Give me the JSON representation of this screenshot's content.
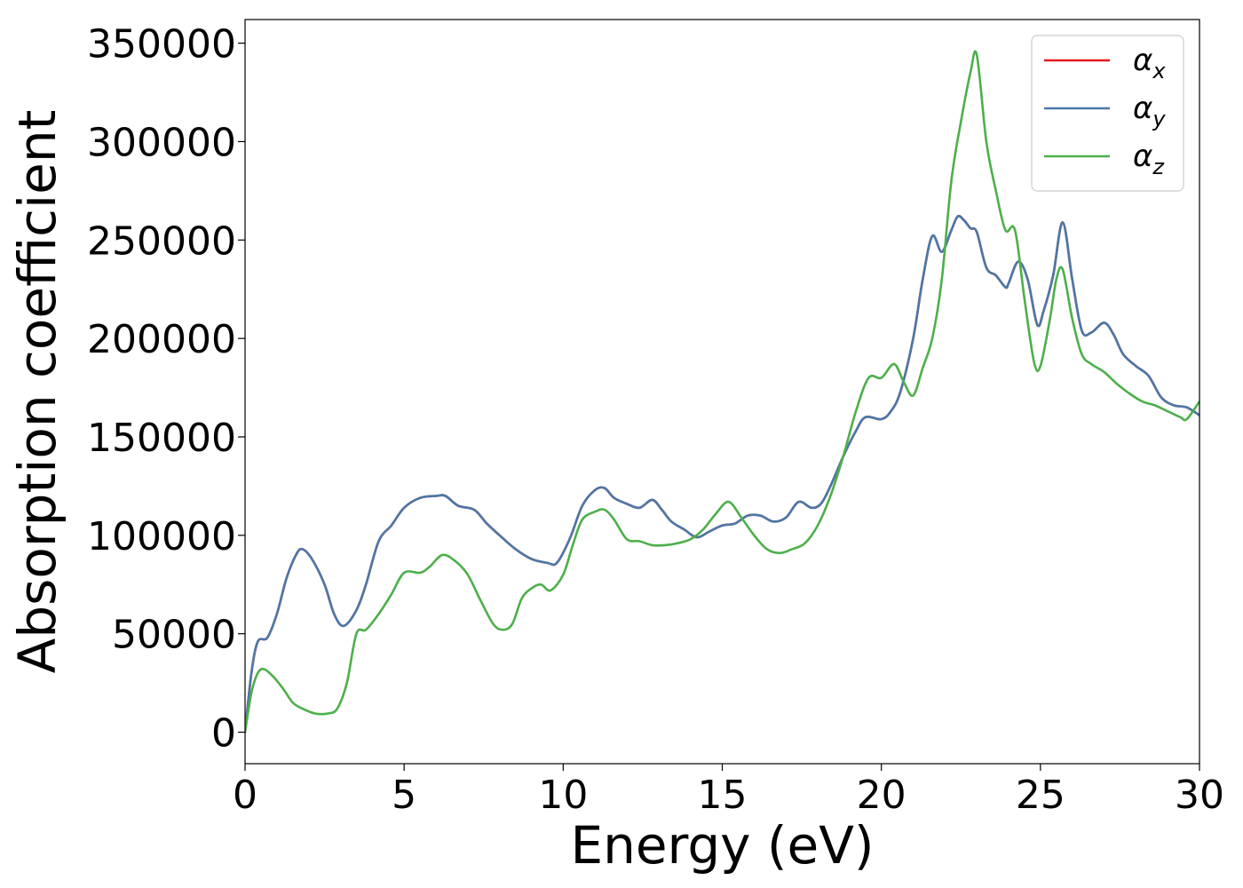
{
  "chart_data": {
    "type": "line",
    "title": "",
    "xlabel": "Energy (eV)",
    "ylabel": "Absorption coefficient",
    "xlim": [
      0,
      30
    ],
    "ylim": [
      -16000,
      362000
    ],
    "xticks": [
      0,
      5,
      10,
      15,
      20,
      25,
      30
    ],
    "xtick_labels": [
      "0",
      "5",
      "10",
      "15",
      "20",
      "25",
      "30"
    ],
    "yticks": [
      0,
      50000,
      100000,
      150000,
      200000,
      250000,
      300000,
      350000
    ],
    "ytick_labels": [
      "0",
      "50000",
      "100000",
      "150000",
      "200000",
      "250000",
      "300000",
      "350000"
    ],
    "grid": false,
    "legend_position": "top-right",
    "series": [
      {
        "name": "α",
        "subscript": "x",
        "color": "#e41a1c",
        "x": [
          0,
          0.2,
          0.4,
          0.7,
          1.0,
          1.3,
          1.6,
          1.8,
          2.1,
          2.5,
          2.8,
          3.1,
          3.5,
          3.8,
          4.2,
          4.6,
          5.0,
          5.5,
          6.0,
          6.3,
          6.7,
          7.2,
          7.6,
          8.0,
          8.5,
          9.0,
          9.5,
          9.8,
          10.2,
          10.6,
          11.0,
          11.3,
          11.6,
          12.0,
          12.4,
          12.8,
          13.1,
          13.4,
          13.8,
          14.2,
          14.6,
          15.0,
          15.4,
          15.8,
          16.2,
          16.6,
          17.0,
          17.4,
          17.8,
          18.1,
          18.4,
          18.8,
          19.2,
          19.5,
          20.0,
          20.3,
          20.6,
          21.0,
          21.3,
          21.6,
          21.9,
          22.2,
          22.4,
          22.6,
          22.8,
          23.0,
          23.3,
          23.6,
          23.9,
          24.0,
          24.3,
          24.6,
          24.9,
          25.1,
          25.4,
          25.7,
          26.0,
          26.3,
          26.6,
          27.0,
          27.3,
          27.6,
          28.0,
          28.4,
          28.8,
          29.2,
          29.6,
          30.0
        ],
        "y": [
          0,
          30000,
          46000,
          48000,
          60000,
          78000,
          90000,
          93000,
          88000,
          75000,
          60000,
          54000,
          62000,
          75000,
          97000,
          105000,
          114000,
          119000,
          120000,
          120000,
          115000,
          113000,
          106000,
          100000,
          93000,
          88000,
          86000,
          86000,
          98000,
          115000,
          123000,
          124000,
          119000,
          116000,
          114000,
          118000,
          113000,
          107000,
          103000,
          99000,
          102000,
          105000,
          106000,
          110000,
          110000,
          107000,
          109000,
          117000,
          114000,
          116000,
          125000,
          140000,
          153000,
          160000,
          159000,
          163000,
          173000,
          200000,
          230000,
          252000,
          244000,
          255000,
          262000,
          260000,
          256000,
          254000,
          236000,
          232000,
          226000,
          228000,
          239000,
          230000,
          207000,
          214000,
          232000,
          259000,
          230000,
          204000,
          203000,
          208000,
          202000,
          192000,
          186000,
          181000,
          170000,
          166000,
          165000,
          161000
        ]
      },
      {
        "name": "α",
        "subscript": "y",
        "color": "#4a78a8",
        "x": [
          0,
          0.2,
          0.4,
          0.7,
          1.0,
          1.3,
          1.6,
          1.8,
          2.1,
          2.5,
          2.8,
          3.1,
          3.5,
          3.8,
          4.2,
          4.6,
          5.0,
          5.5,
          6.0,
          6.3,
          6.7,
          7.2,
          7.6,
          8.0,
          8.5,
          9.0,
          9.5,
          9.8,
          10.2,
          10.6,
          11.0,
          11.3,
          11.6,
          12.0,
          12.4,
          12.8,
          13.1,
          13.4,
          13.8,
          14.2,
          14.6,
          15.0,
          15.4,
          15.8,
          16.2,
          16.6,
          17.0,
          17.4,
          17.8,
          18.1,
          18.4,
          18.8,
          19.2,
          19.5,
          20.0,
          20.3,
          20.6,
          21.0,
          21.3,
          21.6,
          21.9,
          22.2,
          22.4,
          22.6,
          22.8,
          23.0,
          23.3,
          23.6,
          23.9,
          24.0,
          24.3,
          24.6,
          24.9,
          25.1,
          25.4,
          25.7,
          26.0,
          26.3,
          26.6,
          27.0,
          27.3,
          27.6,
          28.0,
          28.4,
          28.8,
          29.2,
          29.6,
          30.0
        ],
        "y": [
          0,
          30000,
          46000,
          48000,
          60000,
          78000,
          90000,
          93000,
          88000,
          75000,
          60000,
          54000,
          62000,
          75000,
          97000,
          105000,
          114000,
          119000,
          120000,
          120000,
          115000,
          113000,
          106000,
          100000,
          93000,
          88000,
          86000,
          86000,
          98000,
          115000,
          123000,
          124000,
          119000,
          116000,
          114000,
          118000,
          113000,
          107000,
          103000,
          99000,
          102000,
          105000,
          106000,
          110000,
          110000,
          107000,
          109000,
          117000,
          114000,
          116000,
          125000,
          140000,
          153000,
          160000,
          159000,
          163000,
          173000,
          200000,
          230000,
          252000,
          244000,
          255000,
          262000,
          260000,
          256000,
          254000,
          236000,
          232000,
          226000,
          228000,
          239000,
          230000,
          207000,
          214000,
          232000,
          259000,
          230000,
          204000,
          203000,
          208000,
          202000,
          192000,
          186000,
          181000,
          170000,
          166000,
          165000,
          161000
        ]
      },
      {
        "name": "α",
        "subscript": "z",
        "color": "#4daf4a",
        "x": [
          0,
          0.2,
          0.4,
          0.6,
          0.9,
          1.2,
          1.5,
          1.8,
          2.2,
          2.6,
          2.9,
          3.2,
          3.5,
          3.8,
          4.2,
          4.6,
          5.0,
          5.5,
          5.8,
          6.2,
          6.6,
          7.0,
          7.4,
          7.8,
          8.1,
          8.4,
          8.7,
          9.0,
          9.3,
          9.6,
          10.0,
          10.3,
          10.6,
          11.0,
          11.3,
          11.6,
          12.0,
          12.4,
          12.8,
          13.2,
          13.6,
          14.0,
          14.4,
          14.8,
          15.2,
          15.6,
          16.0,
          16.4,
          16.8,
          17.2,
          17.6,
          18.0,
          18.4,
          18.8,
          19.2,
          19.6,
          20.0,
          20.4,
          20.7,
          21.0,
          21.3,
          21.6,
          21.9,
          22.2,
          22.5,
          22.8,
          23.0,
          23.3,
          23.6,
          23.9,
          24.2,
          24.5,
          24.8,
          25.0,
          25.3,
          25.5,
          25.7,
          26.0,
          26.3,
          26.6,
          27.0,
          27.4,
          27.8,
          28.2,
          28.6,
          29.0,
          29.4,
          29.6,
          30.0
        ],
        "y": [
          0,
          20000,
          30000,
          32000,
          28000,
          22000,
          15000,
          12000,
          9500,
          9500,
          12000,
          25000,
          50000,
          52000,
          60000,
          70000,
          81000,
          81000,
          84000,
          90000,
          87000,
          80000,
          67000,
          55000,
          52000,
          55000,
          68000,
          73000,
          75000,
          72000,
          80000,
          95000,
          108000,
          112000,
          113000,
          108000,
          98000,
          97000,
          95000,
          95000,
          96000,
          98000,
          103000,
          111000,
          117000,
          109000,
          100000,
          93000,
          91000,
          93000,
          96000,
          105000,
          120000,
          140000,
          163000,
          180000,
          180000,
          187000,
          178000,
          171000,
          185000,
          200000,
          230000,
          280000,
          310000,
          335000,
          344000,
          300000,
          275000,
          255000,
          255000,
          220000,
          188000,
          186000,
          210000,
          230000,
          235000,
          210000,
          192000,
          187000,
          183000,
          177000,
          172000,
          168000,
          166000,
          163000,
          160000,
          159000,
          168000
        ]
      }
    ]
  }
}
